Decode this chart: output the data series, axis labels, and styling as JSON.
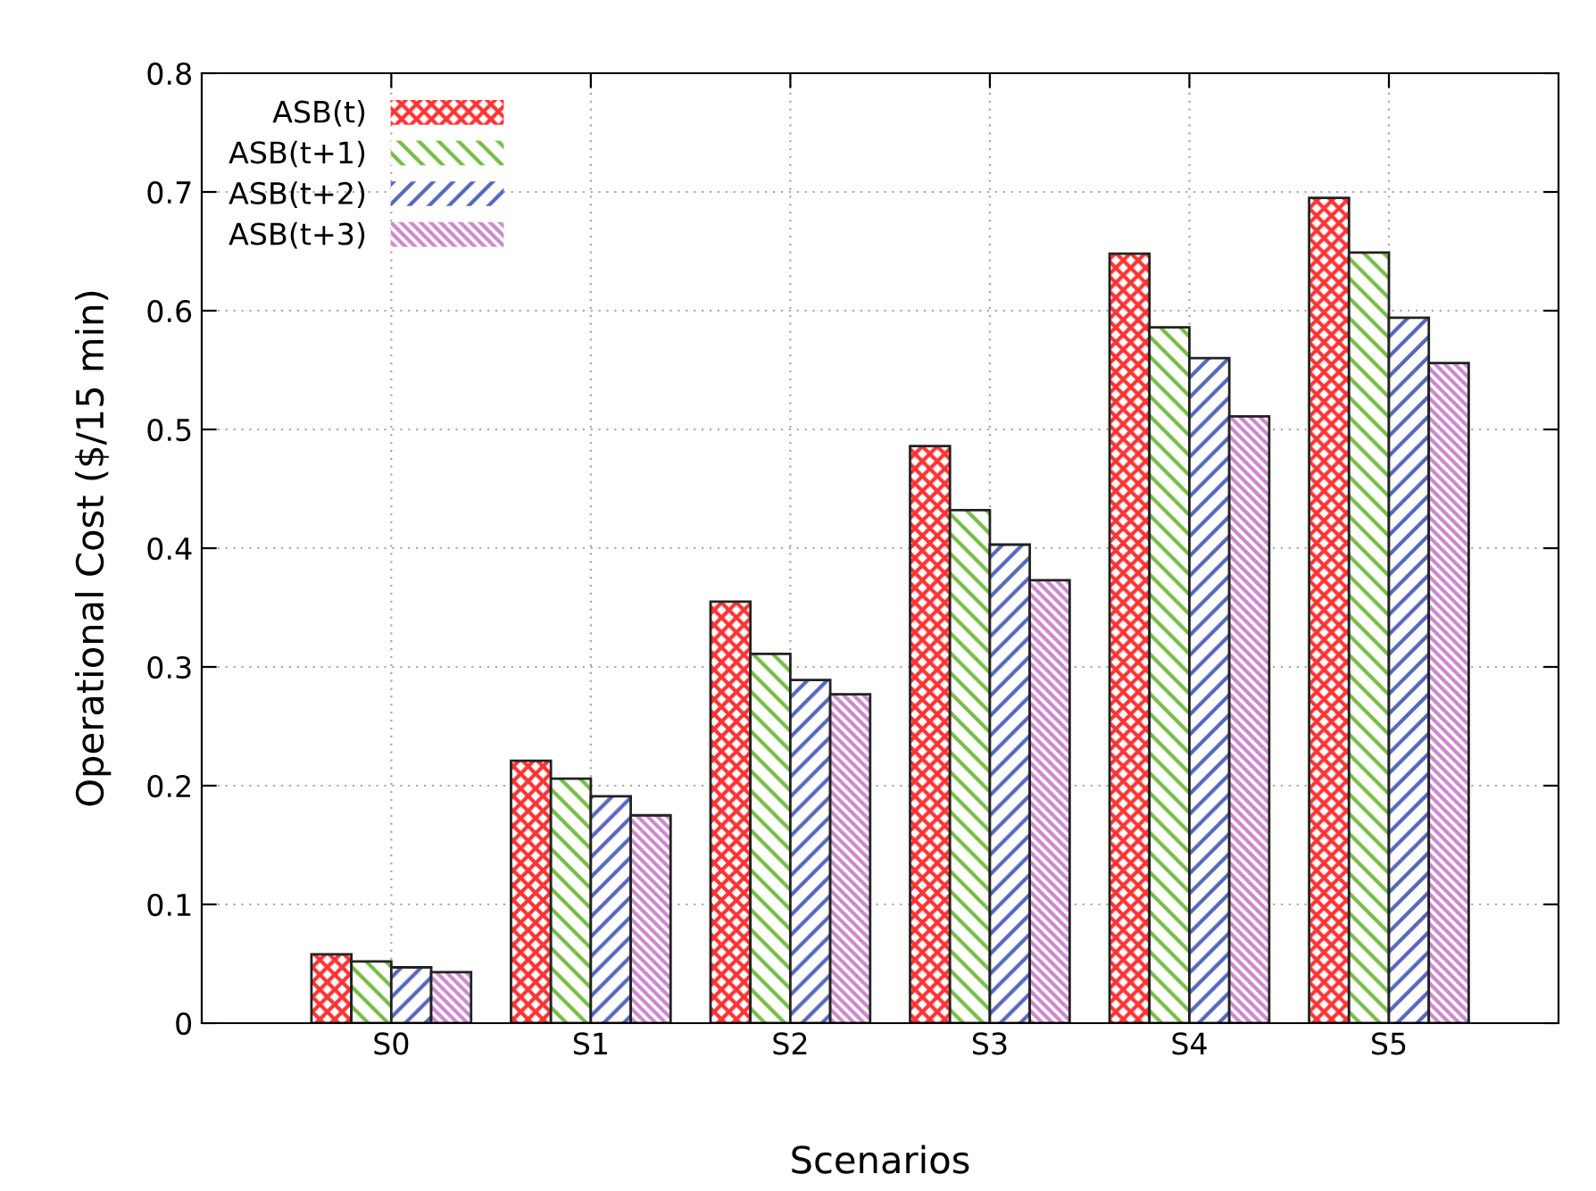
{
  "chart_data": {
    "type": "bar",
    "xlabel": "Scenarios",
    "ylabel": "Operational Cost ($/15 min)",
    "categories": [
      "S0",
      "S1",
      "S2",
      "S3",
      "S4",
      "S5"
    ],
    "series": [
      {
        "name": "ASB(t)",
        "color": "#ff3333",
        "values": [
          0.058,
          0.221,
          0.355,
          0.486,
          0.648,
          0.695
        ]
      },
      {
        "name": "ASB(t+1)",
        "color": "#77bb44",
        "values": [
          0.052,
          0.206,
          0.311,
          0.432,
          0.586,
          0.649
        ]
      },
      {
        "name": "ASB(t+2)",
        "color": "#5566bb",
        "values": [
          0.047,
          0.191,
          0.289,
          0.403,
          0.56,
          0.594
        ]
      },
      {
        "name": "ASB(t+3)",
        "color": "#cc88cc",
        "values": [
          0.043,
          0.175,
          0.277,
          0.373,
          0.511,
          0.556
        ]
      }
    ],
    "ylim": [
      0,
      0.8
    ],
    "yticks": [
      0,
      0.1,
      0.2,
      0.3,
      0.4,
      0.5,
      0.6,
      0.7,
      0.8
    ],
    "grid": true,
    "legend": "top left"
  }
}
